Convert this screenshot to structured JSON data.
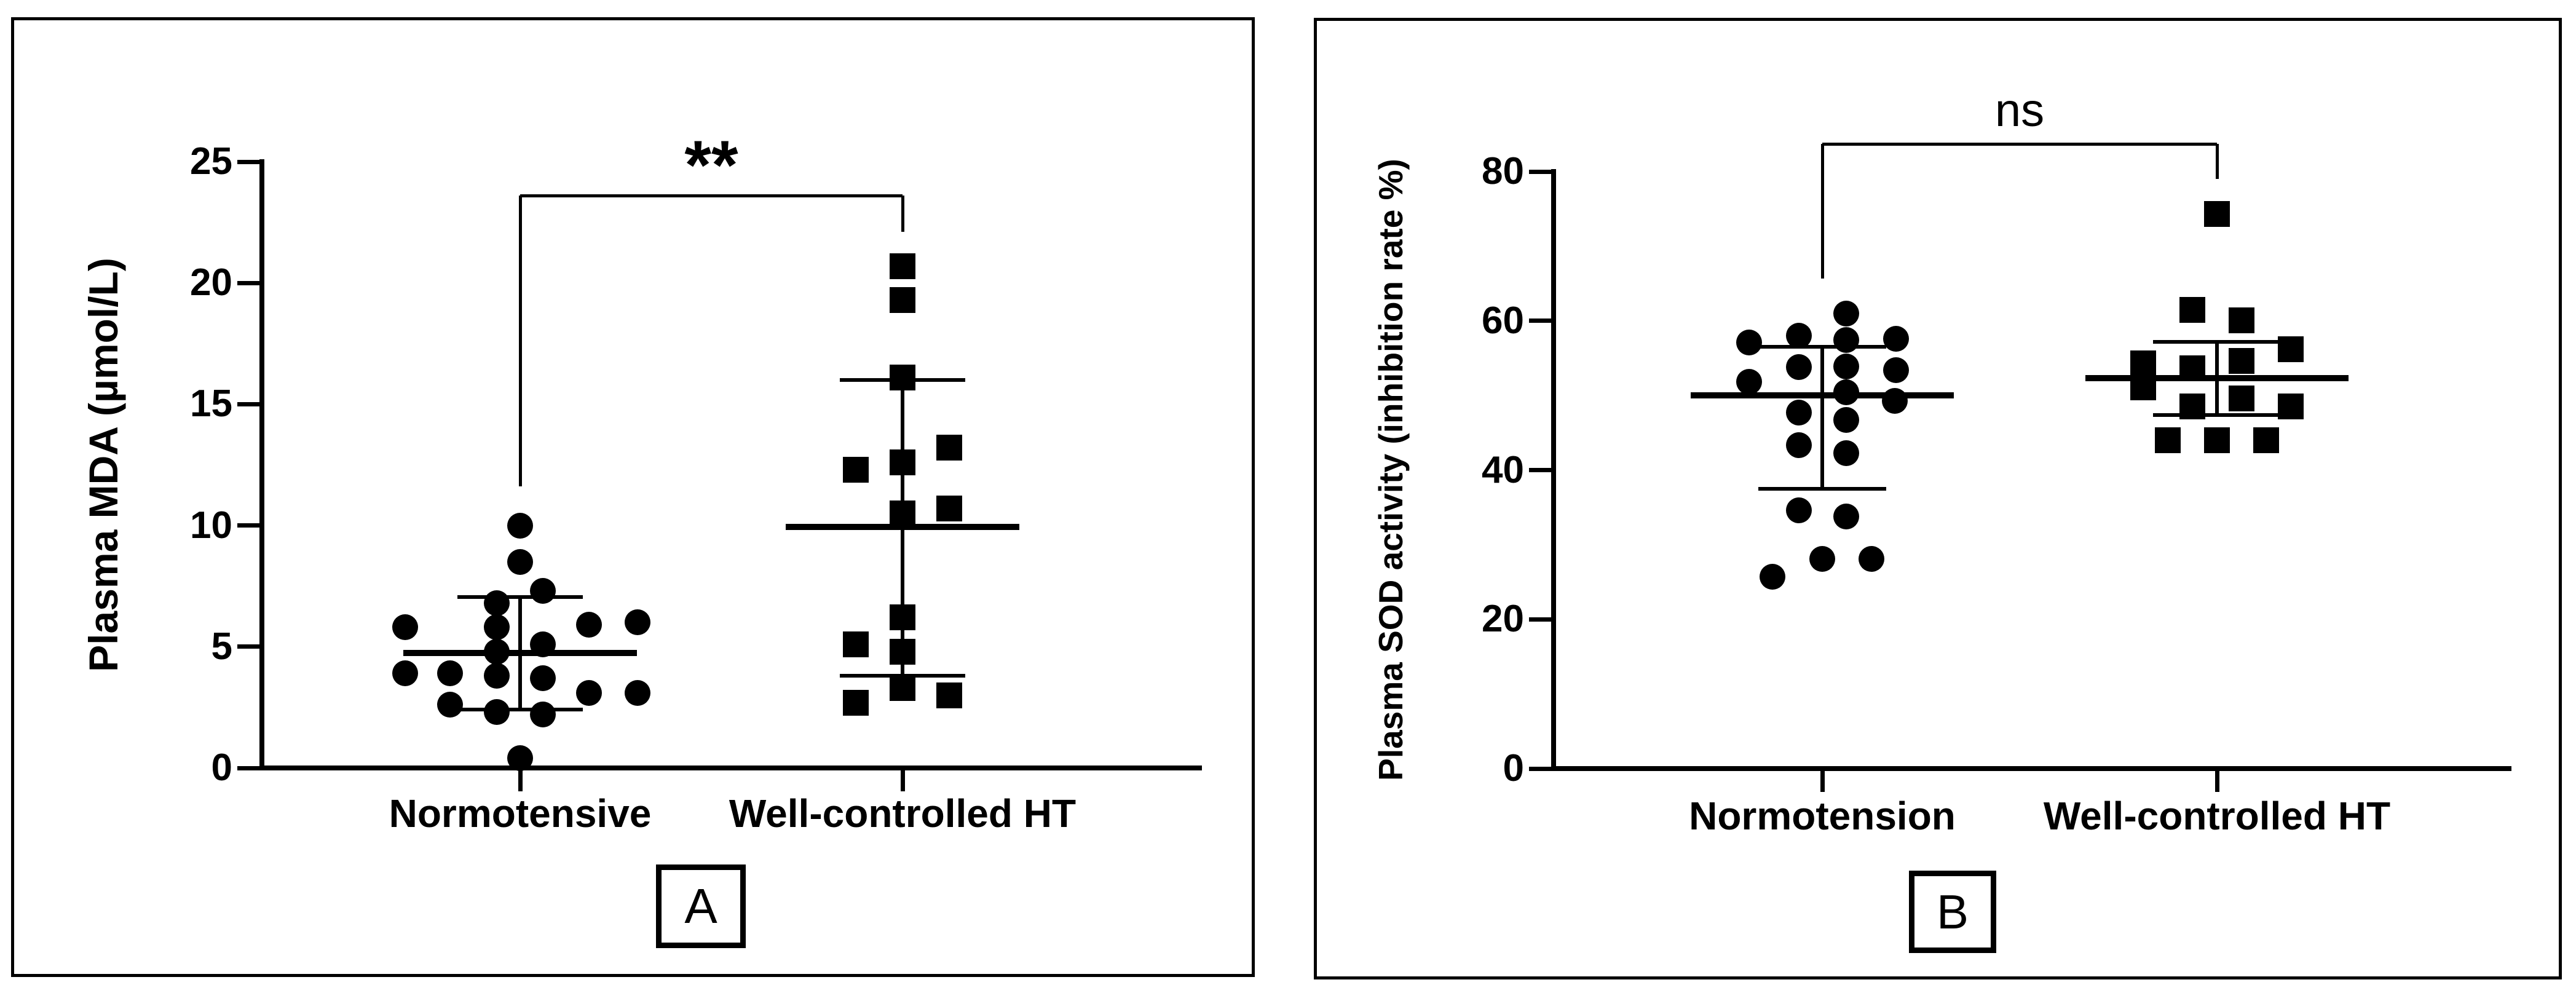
{
  "figure": {
    "description": "Two-panel dot plot figure comparing plasma oxidative stress markers between groups",
    "background": "#ffffff",
    "ink": "#000000"
  },
  "chart_data": [
    {
      "type": "scatter",
      "panel_letter": "A",
      "ylabel": "Plasma MDA (µmol/L)",
      "ylim": [
        0,
        25
      ],
      "yticks": [
        0,
        5,
        10,
        15,
        20,
        25
      ],
      "grid": false,
      "categories": [
        "Normotensive",
        "Well-controlled HT"
      ],
      "significance": {
        "label": "**",
        "bar_y": 23.6,
        "left_leg_to": 11.6,
        "right_leg_to": 22.1
      },
      "series": [
        {
          "name": "Normotensive",
          "marker": "circle",
          "mean": 4.75,
          "sd_upper": 7.05,
          "sd_lower": 2.4,
          "points": [
            {
              "v": 10.0,
              "dx": 0
            },
            {
              "v": 8.5,
              "dx": 0
            },
            {
              "v": 7.3,
              "dx": 37
            },
            {
              "v": 6.8,
              "dx": -38
            },
            {
              "v": 6.0,
              "dx": 191
            },
            {
              "v": 5.9,
              "dx": 112
            },
            {
              "v": 5.8,
              "dx": -187
            },
            {
              "v": 5.8,
              "dx": -38
            },
            {
              "v": 5.1,
              "dx": 37
            },
            {
              "v": 4.8,
              "dx": -38
            },
            {
              "v": 3.9,
              "dx": -187
            },
            {
              "v": 3.9,
              "dx": -114
            },
            {
              "v": 3.8,
              "dx": -38
            },
            {
              "v": 3.7,
              "dx": 37
            },
            {
              "v": 3.1,
              "dx": 191
            },
            {
              "v": 3.1,
              "dx": 112
            },
            {
              "v": 2.6,
              "dx": -114
            },
            {
              "v": 2.3,
              "dx": -38
            },
            {
              "v": 2.2,
              "dx": 37
            },
            {
              "v": 0.4,
              "dx": 0
            }
          ]
        },
        {
          "name": "Well-controlled HT",
          "marker": "square",
          "mean": 9.95,
          "sd_upper": 16.0,
          "sd_lower": 3.8,
          "points": [
            {
              "v": 20.7,
              "dx": 0
            },
            {
              "v": 19.3,
              "dx": 0
            },
            {
              "v": 16.1,
              "dx": 0
            },
            {
              "v": 13.2,
              "dx": 76
            },
            {
              "v": 12.6,
              "dx": 0
            },
            {
              "v": 12.3,
              "dx": -76
            },
            {
              "v": 10.7,
              "dx": 76
            },
            {
              "v": 10.5,
              "dx": 0
            },
            {
              "v": 6.2,
              "dx": 0
            },
            {
              "v": 5.1,
              "dx": -76
            },
            {
              "v": 4.8,
              "dx": 0
            },
            {
              "v": 3.3,
              "dx": 0
            },
            {
              "v": 3.0,
              "dx": 76
            },
            {
              "v": 2.7,
              "dx": -76
            }
          ]
        }
      ]
    },
    {
      "type": "scatter",
      "panel_letter": "B",
      "ylabel": "Plasma SOD activity (inhibition rate %)",
      "ylim": [
        0,
        80
      ],
      "yticks": [
        0,
        20,
        40,
        60,
        80
      ],
      "grid": false,
      "categories": [
        "Normotension",
        "Well-controlled HT"
      ],
      "significance": {
        "label": "ns",
        "bar_y": 83.7,
        "left_leg_to": 65.7,
        "right_leg_to": 79.0
      },
      "series": [
        {
          "name": "Normotension",
          "marker": "circle",
          "mean": 50.0,
          "sd_upper": 56.5,
          "sd_lower": 37.5,
          "points": [
            {
              "v": 61.0,
              "dx": 39
            },
            {
              "v": 58.0,
              "dx": -38
            },
            {
              "v": 57.6,
              "dx": 120
            },
            {
              "v": 57.4,
              "dx": 39
            },
            {
              "v": 57.1,
              "dx": -119
            },
            {
              "v": 53.9,
              "dx": 39
            },
            {
              "v": 53.8,
              "dx": -38
            },
            {
              "v": 53.4,
              "dx": 120
            },
            {
              "v": 51.8,
              "dx": -119
            },
            {
              "v": 50.4,
              "dx": 39
            },
            {
              "v": 49.3,
              "dx": 118
            },
            {
              "v": 47.7,
              "dx": -38
            },
            {
              "v": 46.7,
              "dx": 39
            },
            {
              "v": 43.3,
              "dx": -38
            },
            {
              "v": 42.3,
              "dx": 39
            },
            {
              "v": 34.6,
              "dx": -38
            },
            {
              "v": 33.8,
              "dx": 39
            },
            {
              "v": 28.1,
              "dx": 0
            },
            {
              "v": 28.1,
              "dx": 80
            },
            {
              "v": 25.7,
              "dx": -81
            }
          ]
        },
        {
          "name": "Well-controlled HT",
          "marker": "square",
          "mean": 52.3,
          "sd_upper": 57.2,
          "sd_lower": 47.4,
          "points": [
            {
              "v": 74.3,
              "dx": 0
            },
            {
              "v": 61.5,
              "dx": -40
            },
            {
              "v": 60.1,
              "dx": 40
            },
            {
              "v": 56.2,
              "dx": 120
            },
            {
              "v": 54.6,
              "dx": 40
            },
            {
              "v": 54.3,
              "dx": -120
            },
            {
              "v": 53.6,
              "dx": -40
            },
            {
              "v": 51.1,
              "dx": -120
            },
            {
              "v": 49.6,
              "dx": 40
            },
            {
              "v": 48.5,
              "dx": -40
            },
            {
              "v": 48.5,
              "dx": 120
            },
            {
              "v": 44.0,
              "dx": -80
            },
            {
              "v": 44.0,
              "dx": 0
            },
            {
              "v": 44.0,
              "dx": 80
            }
          ]
        }
      ]
    }
  ]
}
